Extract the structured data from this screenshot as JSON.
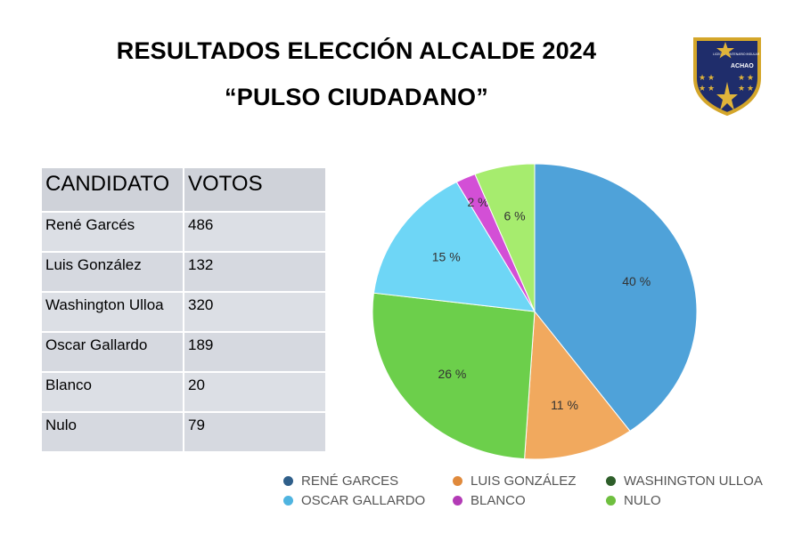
{
  "header": {
    "title_line1": "RESULTADOS ELECCIÓN ALCALDE 2024",
    "title_line2": "“PULSO CIUDADANO”"
  },
  "logo": {
    "top_text": "LICEO BICENTENARIO INSULAR",
    "name": "ACHAO",
    "colors": {
      "shield": "#1f2d6b",
      "border": "#d4a62a",
      "star": "#e0b43a"
    }
  },
  "table": {
    "headers": [
      "CANDIDATO",
      "VOTOS"
    ],
    "rows": [
      [
        "René Garcés",
        "486"
      ],
      [
        "Luis González",
        "132"
      ],
      [
        "Washington Ulloa",
        "320"
      ],
      [
        "Oscar Gallardo",
        "189"
      ],
      [
        "Blanco",
        "20"
      ],
      [
        "Nulo",
        "79"
      ]
    ]
  },
  "chart_data": {
    "type": "pie",
    "title": "",
    "slices": [
      {
        "label": "RENÉ GARCES",
        "value": 40,
        "display": "40 %",
        "color": "#4fa2d9"
      },
      {
        "label": "LUIS GONZÁLEZ",
        "value": 11,
        "display": "11 %",
        "color": "#f1a95e"
      },
      {
        "label": "WASHINGTON ULLOA",
        "value": 26,
        "display": "26 %",
        "color": "#6ccf4b"
      },
      {
        "label": "OSCAR GALLARDO",
        "value": 15,
        "display": "15 %",
        "color": "#6ed6f6"
      },
      {
        "label": "BLANCO",
        "value": 2,
        "display": "2 %",
        "color": "#d34fd6"
      },
      {
        "label": "NULO",
        "value": 6,
        "display": "6 %",
        "color": "#a6ec6e"
      }
    ],
    "legend": {
      "placement": "bottom",
      "items": [
        {
          "label": "RENÉ GARCES",
          "color": "#2f5f8a"
        },
        {
          "label": "LUIS GONZÁLEZ",
          "color": "#e08a3c"
        },
        {
          "label": "WASHINGTON ULLOA",
          "color": "#2e5e2a"
        },
        {
          "label": "OSCAR GALLARDO",
          "color": "#4fb4e0"
        },
        {
          "label": "BLANCO",
          "color": "#b33bb6"
        },
        {
          "label": "NULO",
          "color": "#6fbf3f"
        }
      ]
    }
  }
}
